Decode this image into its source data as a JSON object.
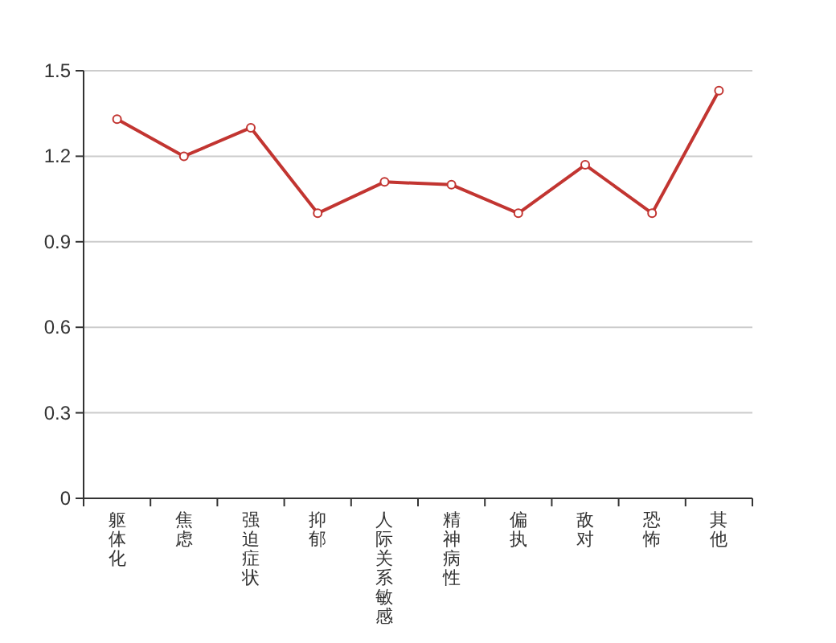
{
  "chart_data": {
    "type": "line",
    "categories": [
      "躯体化",
      "焦虑",
      "强迫症状",
      "抑郁",
      "人际关系敏感",
      "精神病性",
      "偏执",
      "敌对",
      "恐怖",
      "其他"
    ],
    "series": [
      {
        "color": "#c23531",
        "values": [
          1.33,
          1.2,
          1.3,
          1.0,
          1.11,
          1.1,
          1.0,
          1.17,
          1.0,
          1.43
        ]
      }
    ],
    "ylim": [
      0,
      1.5
    ],
    "yticks": [
      0,
      0.3,
      0.6,
      0.9,
      1.2,
      1.5
    ],
    "grid": "y",
    "marker": "circle",
    "line_style": "solid"
  }
}
